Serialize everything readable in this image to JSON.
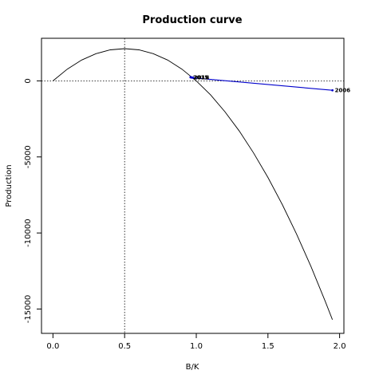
{
  "chart_data": {
    "type": "line",
    "title": "Production curve",
    "xlabel": "B/K",
    "ylabel": "Production",
    "xlim": [
      -0.08,
      2.03
    ],
    "ylim": [
      -16600,
      2800
    ],
    "x_ticks": [
      0.0,
      0.5,
      1.0,
      1.5,
      2.0
    ],
    "x_tick_labels": [
      "0.0",
      "0.5",
      "1.0",
      "1.5",
      "2.0"
    ],
    "y_ticks": [
      0,
      -5000,
      -10000,
      -15000
    ],
    "y_tick_labels": [
      "0",
      "-5000",
      "-10000",
      "-15000"
    ],
    "grid": false,
    "reference_lines": {
      "vertical_x": 0.5,
      "horizontal_y": 0
    },
    "series": [
      {
        "kind": "curve",
        "color": "#000000",
        "points": [
          {
            "x": 0.0,
            "y": 0
          },
          {
            "x": 0.1,
            "y": 770
          },
          {
            "x": 0.2,
            "y": 1370
          },
          {
            "x": 0.3,
            "y": 1790
          },
          {
            "x": 0.4,
            "y": 2040
          },
          {
            "x": 0.5,
            "y": 2120
          },
          {
            "x": 0.6,
            "y": 2040
          },
          {
            "x": 0.7,
            "y": 1790
          },
          {
            "x": 0.8,
            "y": 1370
          },
          {
            "x": 0.9,
            "y": 770
          },
          {
            "x": 1.0,
            "y": 0
          },
          {
            "x": 1.1,
            "y": -930
          },
          {
            "x": 1.2,
            "y": -2030
          },
          {
            "x": 1.3,
            "y": -3300
          },
          {
            "x": 1.4,
            "y": -4740
          },
          {
            "x": 1.5,
            "y": -6350
          },
          {
            "x": 1.6,
            "y": -8130
          },
          {
            "x": 1.7,
            "y": -10080
          },
          {
            "x": 1.8,
            "y": -12200
          },
          {
            "x": 1.9,
            "y": -14490
          },
          {
            "x": 1.95,
            "y": -15700
          }
        ]
      },
      {
        "kind": "trajectory",
        "color": "#0000cc",
        "points": [
          {
            "x": 1.95,
            "y": -620,
            "label": "2006"
          },
          {
            "x": 0.98,
            "y": 200,
            "label": ""
          },
          {
            "x": 0.97,
            "y": 220,
            "label": ""
          },
          {
            "x": 0.965,
            "y": 230,
            "label": "2018"
          },
          {
            "x": 0.96,
            "y": 240,
            "label": "2015"
          }
        ]
      }
    ]
  }
}
